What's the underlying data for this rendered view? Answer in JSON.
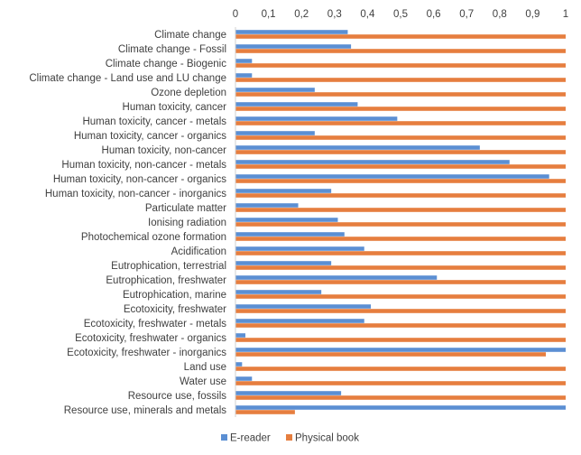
{
  "chart_data": {
    "type": "bar",
    "orientation": "horizontal",
    "title": "",
    "xlabel": "",
    "ylabel": "",
    "xlim": [
      0,
      1
    ],
    "x_ticks": [
      "0",
      "0,1",
      "0,2",
      "0,3",
      "0,4",
      "0,5",
      "0,6",
      "0,7",
      "0,8",
      "0,9",
      "1"
    ],
    "grid": false,
    "legend_position": "bottom",
    "categories": [
      "Climate change",
      "Climate change - Fossil",
      "Climate change - Biogenic",
      "Climate change - Land use and LU change",
      "Ozone depletion",
      "Human toxicity, cancer",
      "Human toxicity, cancer - metals",
      "Human toxicity, cancer - organics",
      "Human toxicity, non-cancer",
      "Human toxicity, non-cancer - metals",
      "Human toxicity, non-cancer - organics",
      "Human toxicity, non-cancer - inorganics",
      "Particulate matter",
      "Ionising radiation",
      "Photochemical ozone formation",
      "Acidification",
      "Eutrophication, terrestrial",
      "Eutrophication, freshwater",
      "Eutrophication, marine",
      "Ecotoxicity, freshwater",
      "Ecotoxicity, freshwater - metals",
      "Ecotoxicity, freshwater - organics",
      "Ecotoxicity, freshwater - inorganics",
      "Land use",
      "Water use",
      "Resource use, fossils",
      "Resource use, minerals and metals"
    ],
    "series": [
      {
        "name": "E-reader",
        "color": "#5B8FD3",
        "values": [
          0.34,
          0.35,
          0.05,
          0.05,
          0.24,
          0.37,
          0.49,
          0.24,
          0.74,
          0.83,
          0.95,
          0.29,
          0.19,
          0.31,
          0.33,
          0.39,
          0.29,
          0.61,
          0.26,
          0.41,
          0.39,
          0.03,
          1.0,
          0.02,
          0.05,
          0.32,
          1.0
        ]
      },
      {
        "name": "Physical book",
        "color": "#E67E3F",
        "values": [
          1,
          1,
          1,
          1,
          1,
          1,
          1,
          1,
          1,
          1,
          1,
          1,
          1,
          1,
          1,
          1,
          1,
          1,
          1,
          1,
          1,
          1,
          0.94,
          1,
          1,
          1,
          0.18
        ]
      }
    ]
  }
}
